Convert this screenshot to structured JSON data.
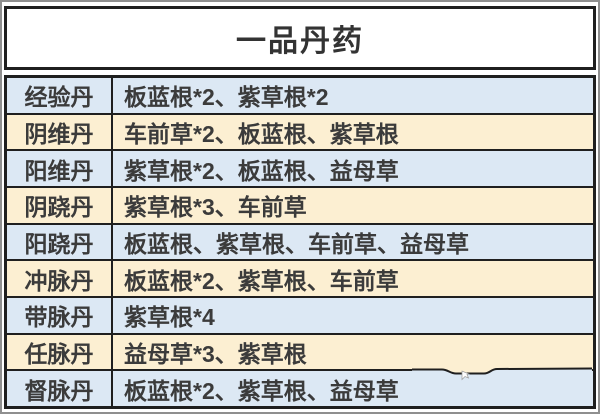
{
  "title": {
    "text": "一品丹药"
  },
  "table": {
    "columns": [
      "pill-name",
      "ingredients"
    ],
    "rows": [
      {
        "name": "经验丹",
        "recipe": "板蓝根*2、紫草根*2"
      },
      {
        "name": "阴维丹",
        "recipe": "车前草*2、板蓝根、紫草根"
      },
      {
        "name": "阳维丹",
        "recipe": "紫草根*2、板蓝根、益母草"
      },
      {
        "name": "阴跷丹",
        "recipe": "紫草根*3、车前草"
      },
      {
        "name": "阳跷丹",
        "recipe": "板蓝根、紫草根、车前草、益母草"
      },
      {
        "name": "冲脉丹",
        "recipe": "板蓝根*2、紫草根、车前草"
      },
      {
        "name": "带脉丹",
        "recipe": "紫草根*4"
      },
      {
        "name": "任脉丹",
        "recipe": "益母草*3、紫草根"
      },
      {
        "name": "督脉丹",
        "recipe": "板蓝根*2、紫草根、益母草"
      }
    ]
  },
  "colors": {
    "row_blue": "#dce8f4",
    "row_cream": "#fcefd2",
    "border_dark": "#1f1f1f",
    "text_main": "#3b3b3b",
    "text_dark": "#333333",
    "title_bg": "#ffffff",
    "frame_gray": "#8f8f8f"
  }
}
